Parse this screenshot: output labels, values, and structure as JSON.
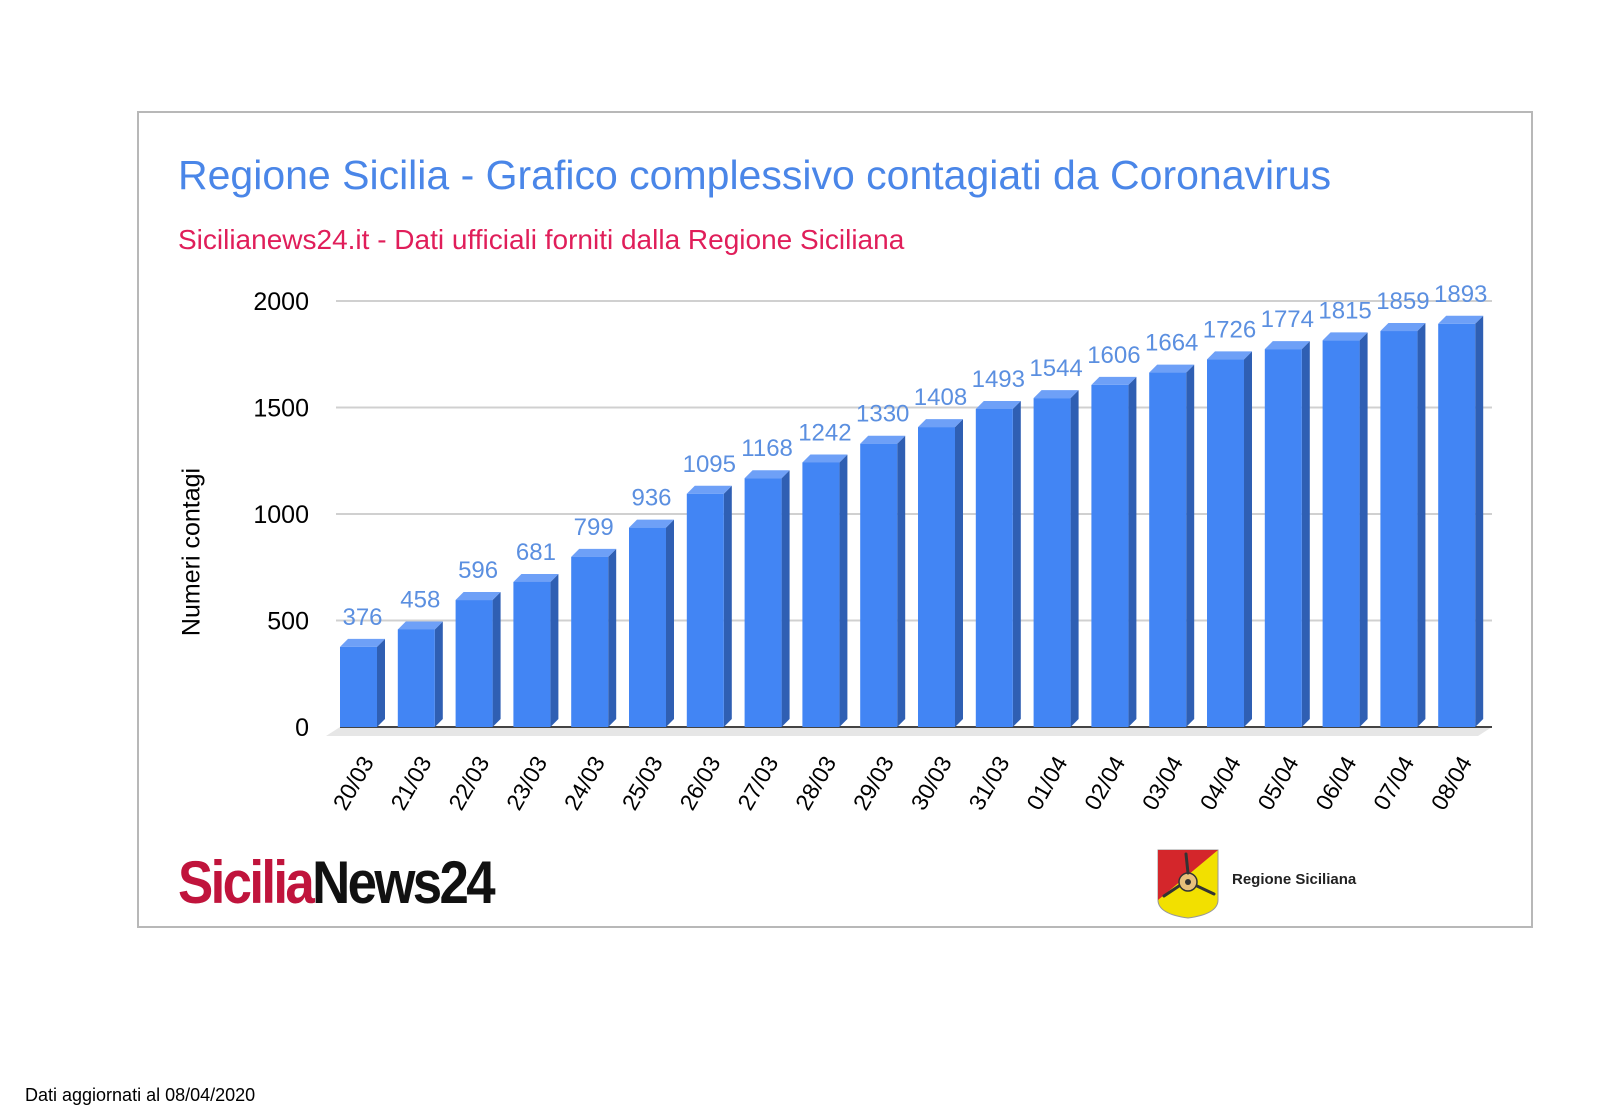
{
  "chart_data": {
    "type": "bar",
    "title": "Regione Sicilia - Grafico complessivo contagiati da Coronavirus",
    "subtitle": "Sicilianews24.it - Dati ufficiali forniti dalla Regione Siciliana",
    "xlabel": "",
    "ylabel": "Numeri contagi",
    "ylim": [
      0,
      2000
    ],
    "yticks": [
      0,
      500,
      1000,
      1500,
      2000
    ],
    "grid": true,
    "categories": [
      "20/03",
      "21/03",
      "22/03",
      "23/03",
      "24/03",
      "25/03",
      "26/03",
      "27/03",
      "28/03",
      "29/03",
      "30/03",
      "31/03",
      "01/04",
      "02/04",
      "03/04",
      "04/04",
      "05/04",
      "06/04",
      "07/04",
      "08/04"
    ],
    "values": [
      376,
      458,
      596,
      681,
      799,
      936,
      1095,
      1168,
      1242,
      1330,
      1408,
      1493,
      1544,
      1606,
      1664,
      1726,
      1774,
      1815,
      1859,
      1893
    ],
    "colors": {
      "bar": "#4285f4",
      "bar_side": "#2f5fb3",
      "bar_top": "#6ea0f7",
      "label": "#5b8fe0",
      "grid": "#d0d0d0"
    }
  },
  "branding": {
    "logo_part1": "Sicilia",
    "logo_part2": "News24",
    "emblem_icon": "trinacria-emblem-icon",
    "emblem_label": "Regione Siciliana"
  },
  "footer": {
    "note": "Dati aggiornati al 08/04/2020"
  }
}
